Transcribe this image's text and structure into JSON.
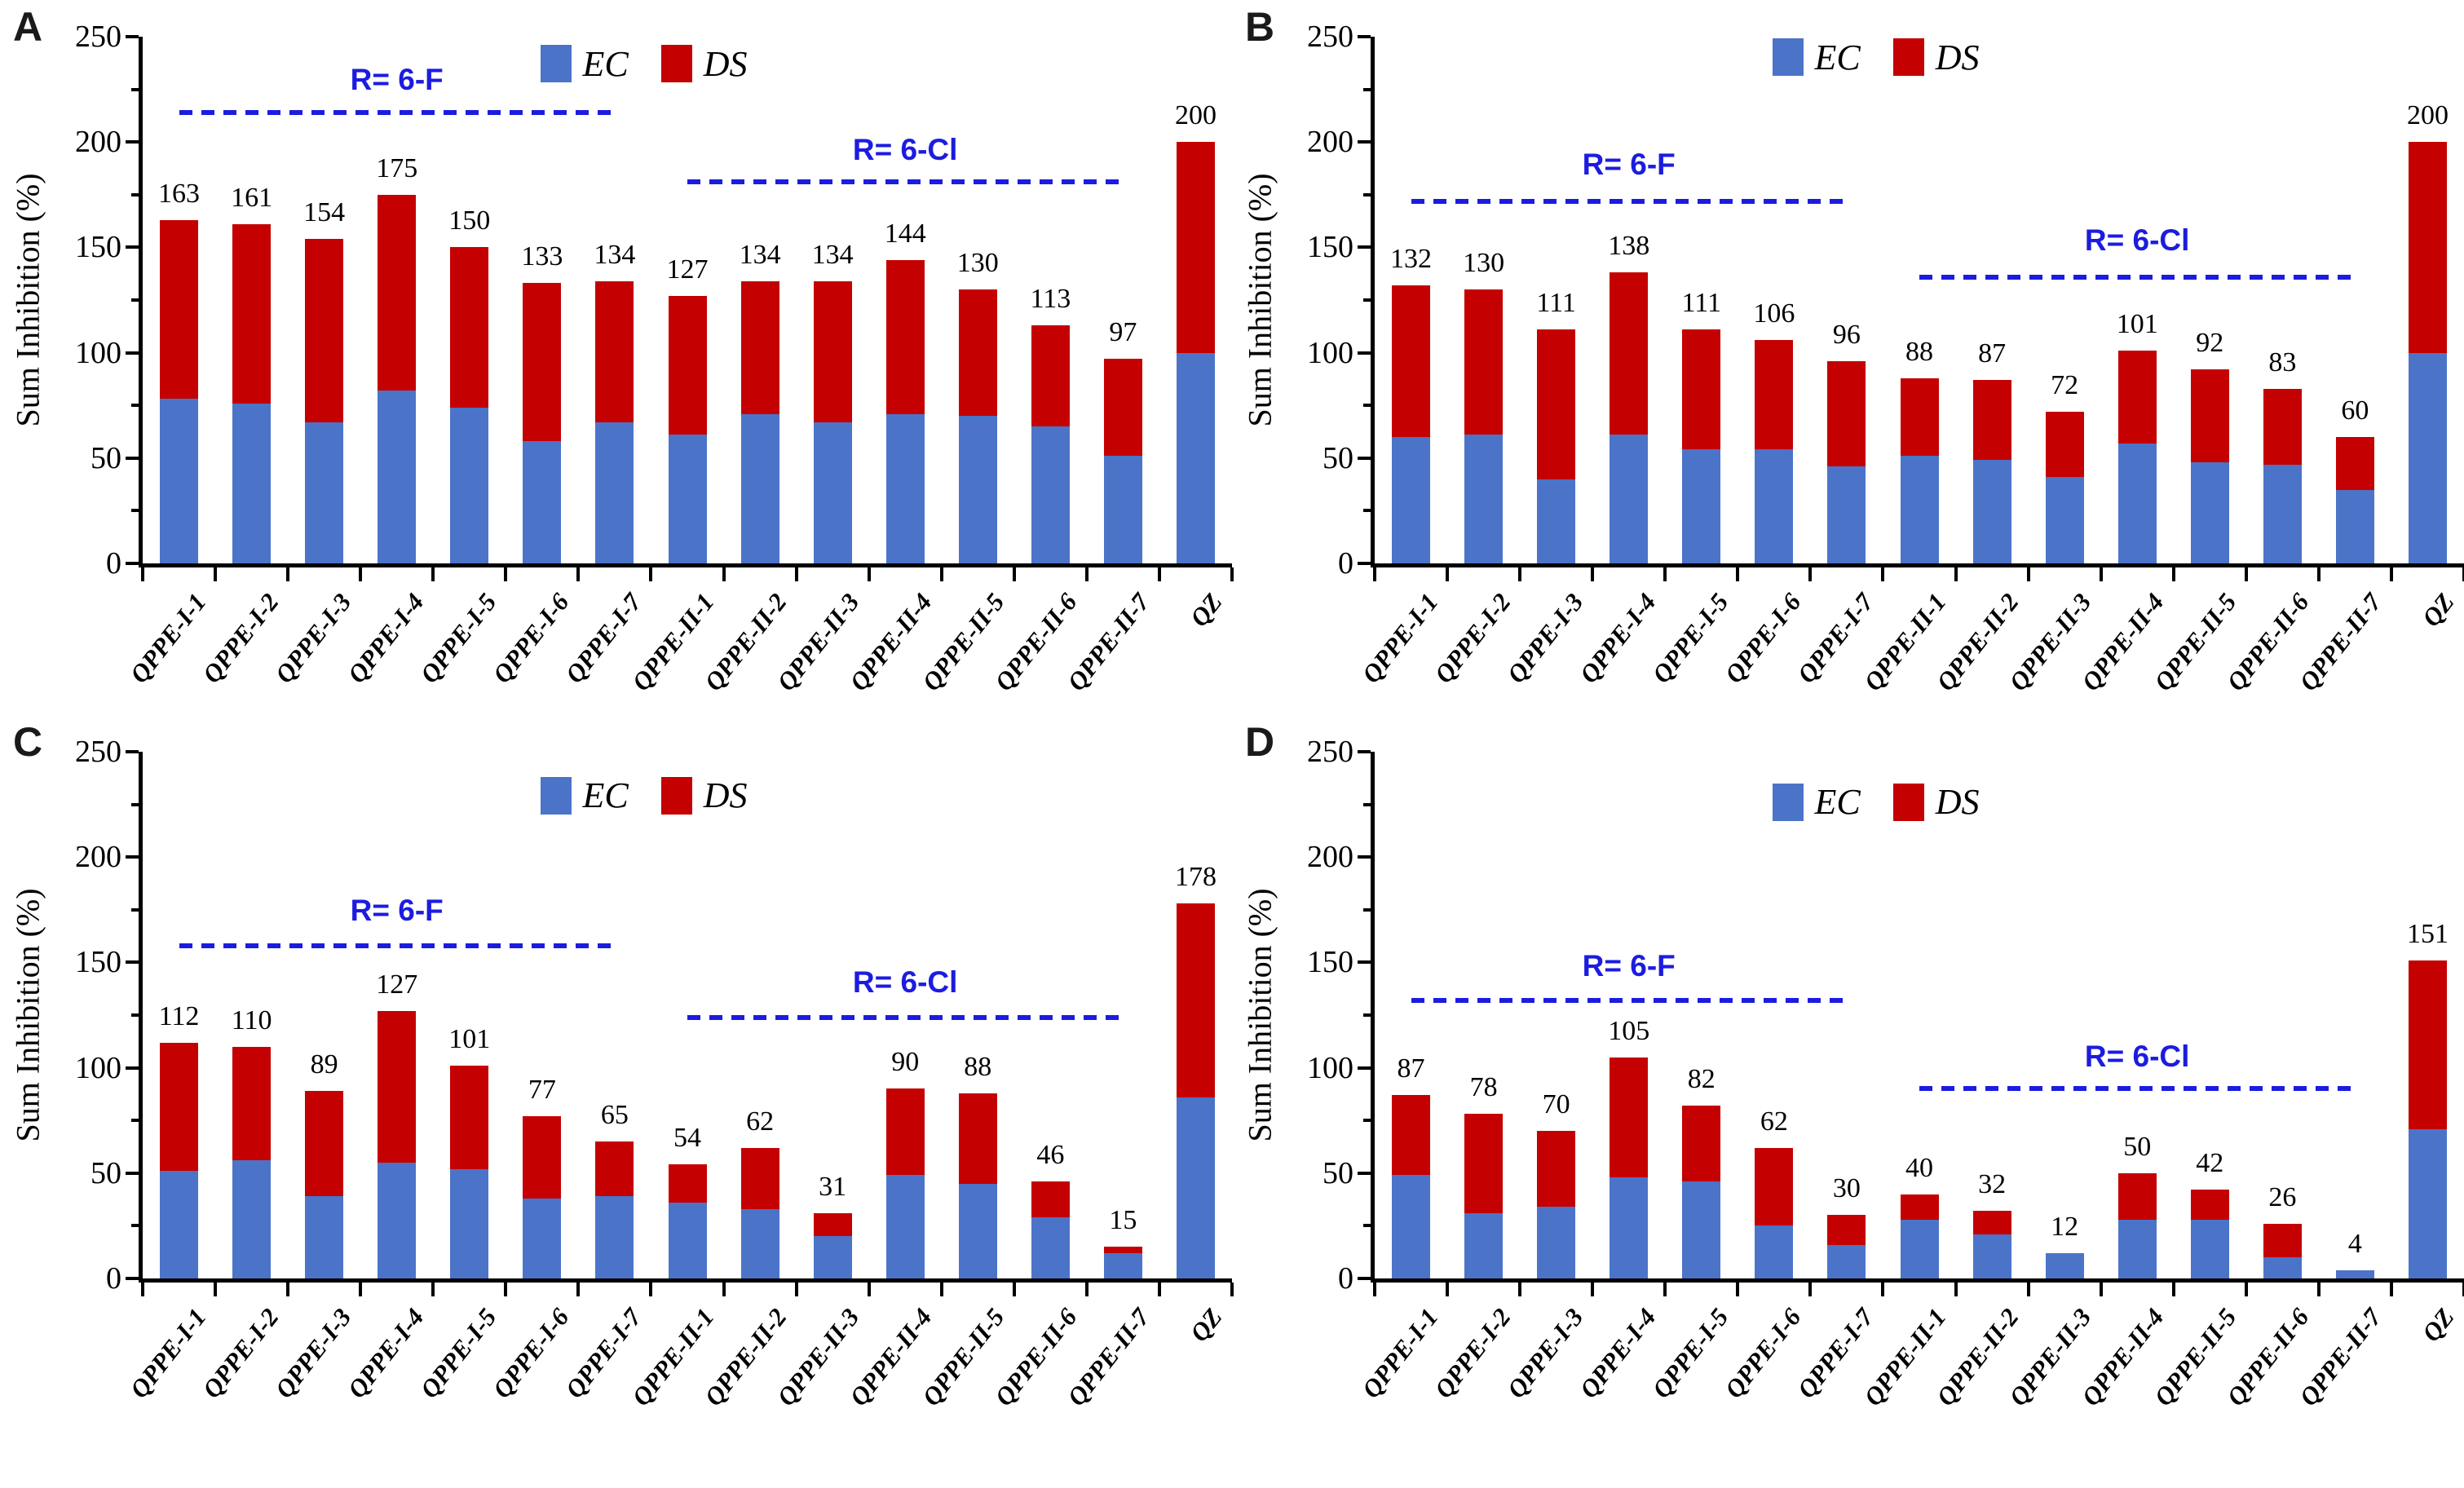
{
  "colors": {
    "ec": "#4b74c8",
    "ds": "#c40000",
    "annotation": "#1c1ce0",
    "axis": "#000000",
    "background": "#ffffff"
  },
  "y_axis": {
    "label": "Sum Inhibition (%)",
    "ticks": [
      0,
      50,
      100,
      150,
      200,
      250
    ],
    "minor_ticks": [
      25,
      75,
      125,
      175,
      225
    ],
    "max": 250
  },
  "legend": {
    "items": [
      {
        "label": "EC",
        "color_key": "ec"
      },
      {
        "label": "DS",
        "color_key": "ds"
      }
    ]
  },
  "chart_data": [
    {
      "panel": "A",
      "type": "bar",
      "stacked": true,
      "ylabel": "Sum Inhibition (%)",
      "ylim": [
        0,
        250
      ],
      "grid": false,
      "legend_position": "top-center",
      "legend_y": 237,
      "categories": [
        "QPPE-I-1",
        "QPPE-I-2",
        "QPPE-I-3",
        "QPPE-I-4",
        "QPPE-I-5",
        "QPPE-I-6",
        "QPPE-I-7",
        "QPPE-II-1",
        "QPPE-II-2",
        "QPPE-II-3",
        "QPPE-II-4",
        "QPPE-II-5",
        "QPPE-II-6",
        "QPPE-II-7",
        "QZ"
      ],
      "series": [
        {
          "name": "EC",
          "values": [
            78,
            76,
            67,
            82,
            74,
            58,
            67,
            61,
            71,
            67,
            71,
            70,
            65,
            51,
            100
          ]
        },
        {
          "name": "DS",
          "values": [
            85,
            85,
            87,
            93,
            76,
            75,
            67,
            66,
            63,
            67,
            73,
            60,
            48,
            46,
            100
          ]
        }
      ],
      "totals": [
        163,
        161,
        154,
        175,
        150,
        133,
        134,
        127,
        134,
        134,
        144,
        130,
        113,
        97,
        200
      ],
      "annotations": [
        {
          "label": "R= 6-F",
          "line_value": 214,
          "text_value": 229,
          "from_cat": 0,
          "to_cat": 6
        },
        {
          "label": "R= 6-Cl",
          "line_value": 181,
          "text_value": 196,
          "from_cat": 7,
          "to_cat": 13
        }
      ]
    },
    {
      "panel": "B",
      "type": "bar",
      "stacked": true,
      "ylabel": "Sum Inhibition (%)",
      "ylim": [
        0,
        250
      ],
      "grid": false,
      "legend_position": "top-center",
      "legend_y": 240,
      "categories": [
        "QPPE-I-1",
        "QPPE-I-2",
        "QPPE-I-3",
        "QPPE-I-4",
        "QPPE-I-5",
        "QPPE-I-6",
        "QPPE-I-7",
        "QPPE-II-1",
        "QPPE-II-2",
        "QPPE-II-3",
        "QPPE-II-4",
        "QPPE-II-5",
        "QPPE-II-6",
        "QPPE-II-7",
        "QZ"
      ],
      "series": [
        {
          "name": "EC",
          "values": [
            60,
            61,
            40,
            61,
            54,
            54,
            46,
            51,
            49,
            41,
            57,
            48,
            47,
            35,
            100
          ]
        },
        {
          "name": "DS",
          "values": [
            72,
            69,
            71,
            77,
            57,
            52,
            50,
            37,
            38,
            31,
            44,
            44,
            36,
            25,
            100
          ]
        }
      ],
      "totals": [
        132,
        130,
        111,
        138,
        111,
        106,
        96,
        88,
        87,
        72,
        101,
        92,
        83,
        60,
        200
      ],
      "annotations": [
        {
          "label": "R= 6-F",
          "line_value": 172,
          "text_value": 189,
          "from_cat": 0,
          "to_cat": 6
        },
        {
          "label": "R= 6-Cl",
          "line_value": 136,
          "text_value": 153,
          "from_cat": 7,
          "to_cat": 13
        }
      ]
    },
    {
      "panel": "C",
      "type": "bar",
      "stacked": true,
      "ylabel": "Sum Inhibition (%)",
      "ylim": [
        0,
        250
      ],
      "grid": false,
      "legend_position": "top-center",
      "legend_y": 229,
      "categories": [
        "QPPE-I-1",
        "QPPE-I-2",
        "QPPE-I-3",
        "QPPE-I-4",
        "QPPE-I-5",
        "QPPE-I-6",
        "QPPE-I-7",
        "QPPE-II-1",
        "QPPE-II-2",
        "QPPE-II-3",
        "QPPE-II-4",
        "QPPE-II-5",
        "QPPE-II-6",
        "QPPE-II-7",
        "QZ"
      ],
      "series": [
        {
          "name": "EC",
          "values": [
            51,
            56,
            39,
            55,
            52,
            38,
            39,
            36,
            33,
            20,
            49,
            45,
            29,
            12,
            86
          ]
        },
        {
          "name": "DS",
          "values": [
            61,
            54,
            50,
            72,
            49,
            39,
            26,
            18,
            29,
            11,
            41,
            43,
            17,
            3,
            92
          ]
        }
      ],
      "totals": [
        112,
        110,
        89,
        127,
        101,
        77,
        65,
        54,
        62,
        31,
        90,
        88,
        46,
        15,
        178
      ],
      "annotations": [
        {
          "label": "R= 6-F",
          "line_value": 158,
          "text_value": 174,
          "from_cat": 0,
          "to_cat": 6
        },
        {
          "label": "R= 6-Cl",
          "line_value": 124,
          "text_value": 140,
          "from_cat": 7,
          "to_cat": 13
        }
      ]
    },
    {
      "panel": "D",
      "type": "bar",
      "stacked": true,
      "ylabel": "Sum Inhibition (%)",
      "ylim": [
        0,
        250
      ],
      "grid": false,
      "legend_position": "top-center",
      "legend_y": 226,
      "categories": [
        "QPPE-I-1",
        "QPPE-I-2",
        "QPPE-I-3",
        "QPPE-I-4",
        "QPPE-I-5",
        "QPPE-I-6",
        "QPPE-I-7",
        "QPPE-II-1",
        "QPPE-II-2",
        "QPPE-II-3",
        "QPPE-II-4",
        "QPPE-II-5",
        "QPPE-II-6",
        "QPPE-II-7",
        "QZ"
      ],
      "series": [
        {
          "name": "EC",
          "values": [
            49,
            31,
            34,
            48,
            46,
            25,
            16,
            28,
            21,
            12,
            28,
            28,
            10,
            4,
            71
          ]
        },
        {
          "name": "DS",
          "values": [
            38,
            47,
            36,
            57,
            36,
            37,
            14,
            12,
            11,
            0,
            22,
            14,
            16,
            0,
            80
          ]
        }
      ],
      "totals": [
        87,
        78,
        70,
        105,
        82,
        62,
        30,
        40,
        32,
        12,
        50,
        42,
        26,
        4,
        151
      ],
      "annotations": [
        {
          "label": "R= 6-F",
          "line_value": 132,
          "text_value": 148,
          "from_cat": 0,
          "to_cat": 6
        },
        {
          "label": "R= 6-Cl",
          "line_value": 90,
          "text_value": 105,
          "from_cat": 7,
          "to_cat": 13
        }
      ]
    }
  ]
}
